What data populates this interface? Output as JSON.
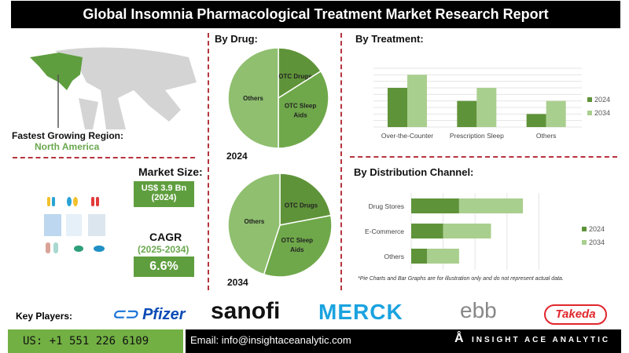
{
  "title": "Global Insomnia Pharmacological Treatment Market Research Report",
  "region": {
    "label": "Fastest Growing Region:",
    "value": "North America"
  },
  "market_size": {
    "label": "Market Size:",
    "value": "US$ 3.9 Bn",
    "year": "(2024)"
  },
  "cagr": {
    "label": "CAGR",
    "period": "(2025-2034)",
    "value": "6.6%"
  },
  "colors": {
    "dark_green": "#5f9339",
    "light_green": "#a9cf8e",
    "mid_green": "#6fa84a",
    "pie_light": "#8fbf6f",
    "accent_red": "#b5343c"
  },
  "by_drug": {
    "title": "By Drug:"
  },
  "chart_data": [
    {
      "type": "pie",
      "label": "2024",
      "slices": [
        {
          "name": "OTC Drugs",
          "value": 16
        },
        {
          "name": "OTC Sleep Aids",
          "value": 34
        },
        {
          "name": "Others",
          "value": 50
        }
      ]
    },
    {
      "type": "pie",
      "label": "2034",
      "slices": [
        {
          "name": "OTC Drugs",
          "value": 22
        },
        {
          "name": "OTC Sleep Aids",
          "value": 33
        },
        {
          "name": "Others",
          "value": 45
        }
      ]
    },
    {
      "type": "bar",
      "title": "By Treatment:",
      "categories": [
        "Over-the-Counter Sleep Aids",
        "Prescription Sleep Aids",
        "Others"
      ],
      "series": [
        {
          "name": "2024",
          "values": [
            6,
            4,
            2
          ]
        },
        {
          "name": "2034",
          "values": [
            8,
            6,
            4
          ]
        }
      ],
      "ylim": [
        0,
        9
      ],
      "grid": true,
      "legend": "right"
    },
    {
      "type": "bar",
      "orientation": "horizontal",
      "stacked": true,
      "title": "By Distribution Channel:",
      "categories": [
        "Drug Stores",
        "E-Commerce",
        "Others"
      ],
      "series": [
        {
          "name": "2024",
          "values": [
            3,
            2,
            1
          ]
        },
        {
          "name": "2034",
          "values": [
            4,
            3,
            2
          ]
        }
      ],
      "xlim": [
        0,
        8
      ],
      "grid": true,
      "legend": "right"
    }
  ],
  "note": "*Pie Charts and Bar Graphs are for illustration only and do not represent actual data.",
  "key_players": {
    "label": "Key Players:",
    "logos": [
      "Pfizer",
      "sanofi",
      "MERCK",
      "ebb",
      "Takeda"
    ]
  },
  "footer": {
    "phone": "US: +1 551 226 6109",
    "email": "Email: info@insightaceanalytic.com",
    "brand": "INSIGHT ACE ANALYTIC"
  }
}
